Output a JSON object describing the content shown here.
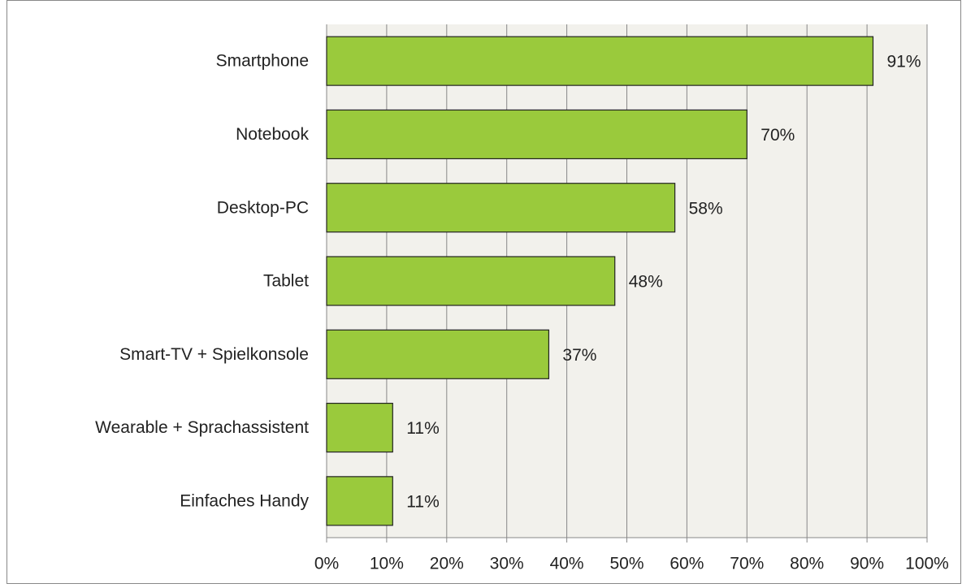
{
  "chart_data": {
    "type": "barh",
    "categories": [
      "Smartphone",
      "Notebook",
      "Desktop-PC",
      "Tablet",
      "Smart-TV + Spielkonsole",
      "Wearable + Sprachassistent",
      "Einfaches Handy"
    ],
    "values": [
      91,
      70,
      58,
      48,
      37,
      11,
      11
    ],
    "value_labels": [
      "91%",
      "70%",
      "58%",
      "48%",
      "37%",
      "11%",
      "11%"
    ],
    "color": "#9aca3c",
    "xlim": [
      0,
      100
    ],
    "xticks": [
      {
        "value": 0,
        "label": "0%"
      },
      {
        "value": 10,
        "label": "10%"
      },
      {
        "value": 20,
        "label": "20%"
      },
      {
        "value": 30,
        "label": "30%"
      },
      {
        "value": 40,
        "label": "40%"
      },
      {
        "value": 50,
        "label": "50%"
      },
      {
        "value": 60,
        "label": "60%"
      },
      {
        "value": 70,
        "label": "70%"
      },
      {
        "value": 80,
        "label": "80%"
      },
      {
        "value": 90,
        "label": "90%"
      },
      {
        "value": 100,
        "label": "100%"
      }
    ],
    "grid": true
  }
}
